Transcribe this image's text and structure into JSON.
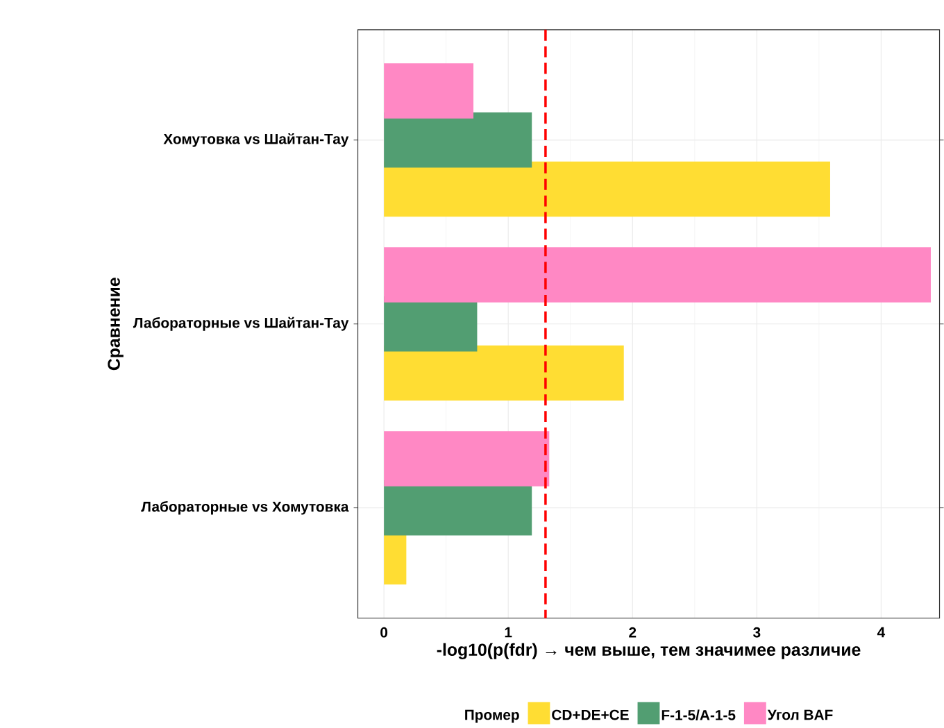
{
  "chart_data": {
    "type": "bar",
    "orientation": "horizontal",
    "xlabel": "-log10(p(fdr) → чем выше, тем значимее различие",
    "ylabel": "Сравнение",
    "legend_title": "Промер",
    "categories": [
      "Хомутовка vs Шайтан-Тау",
      "Лабораторные vs Шайтан-Тау",
      "Лабораторные vs Хомутовка"
    ],
    "series": [
      {
        "name": "CD+DE+CE",
        "color": "#ffdd33",
        "values": [
          3.59,
          1.93,
          0.18
        ]
      },
      {
        "name": "F-1-5/A-1-5",
        "color": "#529e72",
        "values": [
          1.19,
          0.75,
          1.19
        ]
      },
      {
        "name": "Угол BAF",
        "color": "#ff88c4",
        "values": [
          0.72,
          4.4,
          1.33
        ]
      }
    ],
    "xlim": [
      -0.21,
      4.47
    ],
    "xticks": [
      0,
      1,
      2,
      3,
      4
    ],
    "ref_lines": [
      {
        "axis": "x",
        "value": 1.3,
        "color": "#ff0000",
        "line_style": "dashed"
      }
    ],
    "grid": true,
    "legend": "bottom"
  }
}
